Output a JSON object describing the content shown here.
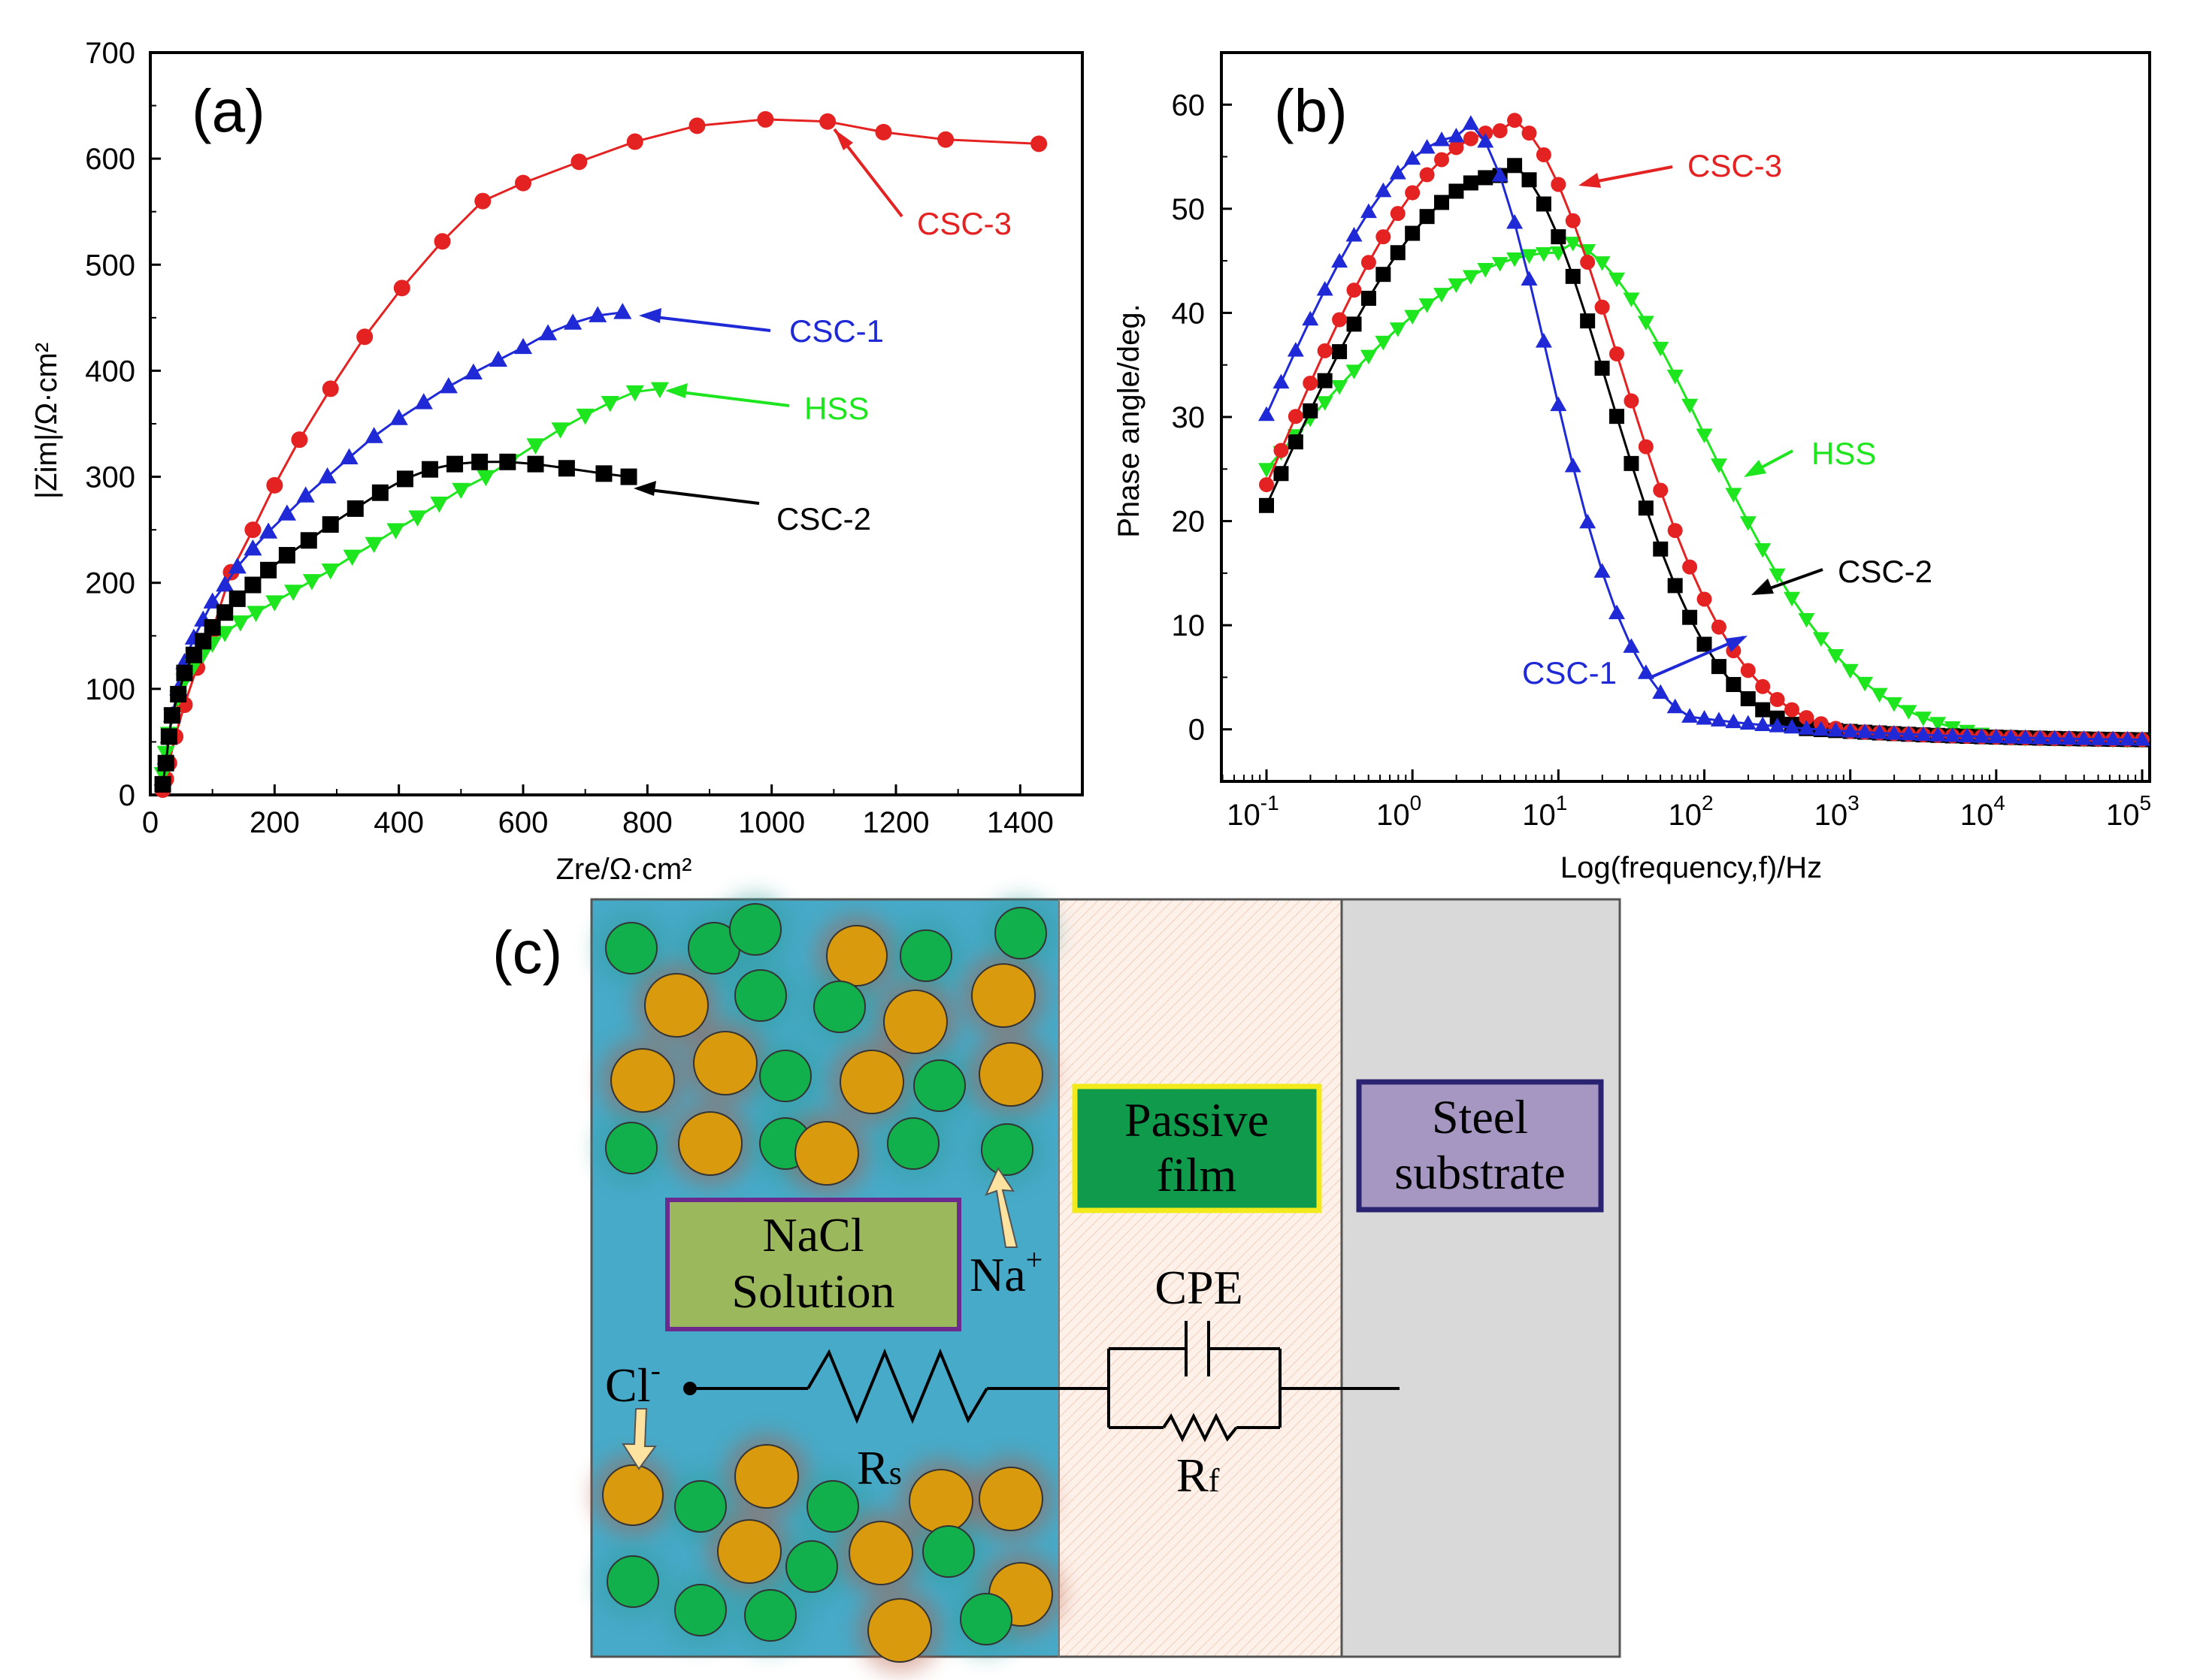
{
  "chart_data": [
    {
      "type": "scatter",
      "panel": "(a)",
      "xlabel": "Zre/Ω·cm²",
      "ylabel": "|Zim|/Ω·cm²",
      "xlim": [
        0,
        1500
      ],
      "ylim": [
        0,
        700
      ],
      "xticks": [
        0,
        200,
        400,
        600,
        800,
        1000,
        1200,
        1400
      ],
      "yticks": [
        0,
        100,
        200,
        300,
        400,
        500,
        600,
        700
      ],
      "series": [
        {
          "name": "CSC-3",
          "color": "#e52222",
          "marker": "circle",
          "x": [
            20,
            25,
            30,
            40,
            55,
            75,
            100,
            130,
            165,
            200,
            240,
            290,
            345,
            405,
            470,
            535,
            600,
            690,
            780,
            880,
            990,
            1090,
            1180,
            1280,
            1430
          ],
          "y": [
            5,
            15,
            30,
            55,
            85,
            120,
            155,
            210,
            250,
            292,
            335,
            383,
            432,
            478,
            522,
            560,
            577,
            597,
            616,
            631,
            637,
            635,
            625,
            618,
            614
          ]
        },
        {
          "name": "CSC-1",
          "color": "#1f2ad6",
          "marker": "triangle-up",
          "x": [
            20,
            25,
            30,
            35,
            45,
            55,
            70,
            85,
            100,
            120,
            140,
            165,
            190,
            220,
            250,
            285,
            320,
            360,
            400,
            440,
            480,
            520,
            560,
            600,
            640,
            680,
            720,
            760
          ],
          "y": [
            15,
            35,
            55,
            75,
            100,
            125,
            148,
            165,
            182,
            198,
            215,
            232,
            248,
            265,
            282,
            300,
            318,
            338,
            355,
            370,
            385,
            398,
            410,
            422,
            435,
            445,
            452,
            455
          ]
        },
        {
          "name": "HSS",
          "color": "#1ee61e",
          "marker": "triangle-down",
          "x": [
            20,
            25,
            30,
            35,
            45,
            55,
            70,
            85,
            100,
            120,
            145,
            170,
            200,
            230,
            260,
            290,
            325,
            360,
            395,
            430,
            465,
            500,
            540,
            580,
            620,
            660,
            700,
            740,
            780,
            820
          ],
          "y": [
            20,
            40,
            58,
            75,
            92,
            108,
            122,
            133,
            143,
            153,
            163,
            172,
            182,
            192,
            202,
            212,
            225,
            237,
            250,
            262,
            275,
            288,
            300,
            315,
            330,
            345,
            358,
            370,
            380,
            383
          ]
        },
        {
          "name": "CSC-2",
          "color": "#000000",
          "marker": "square",
          "x": [
            20,
            25,
            30,
            35,
            45,
            55,
            70,
            85,
            100,
            120,
            140,
            165,
            190,
            220,
            255,
            290,
            330,
            370,
            410,
            450,
            490,
            530,
            575,
            620,
            670,
            730,
            770
          ],
          "y": [
            10,
            30,
            55,
            75,
            95,
            115,
            132,
            145,
            158,
            172,
            185,
            198,
            212,
            226,
            240,
            255,
            270,
            285,
            298,
            307,
            312,
            314,
            314,
            312,
            308,
            303,
            300
          ]
        }
      ]
    },
    {
      "type": "scatter",
      "panel": "(b)",
      "xlabel": "Log(frequency,f)/Hz",
      "ylabel": "Phase angle/deg.",
      "xscale": "log",
      "xlim": [
        -1.3,
        5
      ],
      "ylim": [
        -5,
        65
      ],
      "xticks": [
        "10",
        "10",
        "10",
        "10",
        "10",
        "10",
        "10"
      ],
      "xtick_exponents": [
        "-1",
        "0",
        "1",
        "2",
        "3",
        "4",
        "5"
      ],
      "yticks": [
        0,
        10,
        20,
        30,
        40,
        50,
        60
      ],
      "series": [
        {
          "name": "CSC-1",
          "color": "#1f2ad6",
          "marker": "triangle-up",
          "peak_logf": 0.35,
          "peak": 57.0,
          "start": 30.2,
          "width_high": 0.55
        },
        {
          "name": "CSC-3",
          "color": "#e52222",
          "marker": "circle",
          "peak_logf": 0.62,
          "peak": 57.5,
          "start": 23.5,
          "width_high": 0.75
        },
        {
          "name": "CSC-2",
          "color": "#000000",
          "marker": "square",
          "peak_logf": 0.62,
          "peak": 53.2,
          "start": 21.5,
          "width_high": 0.68
        },
        {
          "name": "HSS",
          "color": "#1ee61e",
          "marker": "triangle-down",
          "peak_logf": 1.0,
          "peak": 45.8,
          "start": 25.0,
          "width_high": 0.95
        }
      ]
    }
  ],
  "panel_c": {
    "label": "(c)",
    "nacl_label": [
      "NaCl",
      "Solution"
    ],
    "passive_label": [
      "Passive",
      "film"
    ],
    "steel_label": [
      "Steel",
      "substrate"
    ],
    "na_label": "Na",
    "na_sup": "+",
    "cl_label": "Cl",
    "cl_sup": "-",
    "cpe_label": "CPE",
    "rs_label": "R",
    "rs_sub": "s",
    "rf_label": "R",
    "rf_sub": "f"
  }
}
